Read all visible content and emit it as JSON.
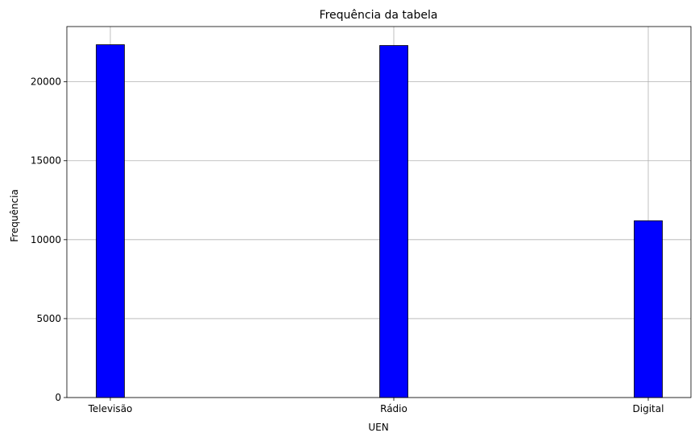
{
  "chart_data": {
    "type": "bar",
    "title": "Frequência da tabela",
    "xlabel": "UEN",
    "ylabel": "Frequência",
    "categories": [
      "Televisão",
      "Rádio",
      "Digital"
    ],
    "values": [
      22350,
      22300,
      11200
    ],
    "yticks": [
      0,
      5000,
      10000,
      15000,
      20000
    ],
    "ylim": [
      0,
      23500
    ],
    "grid": true,
    "bar_color": "#0000ff",
    "edge_color": "#000000"
  }
}
